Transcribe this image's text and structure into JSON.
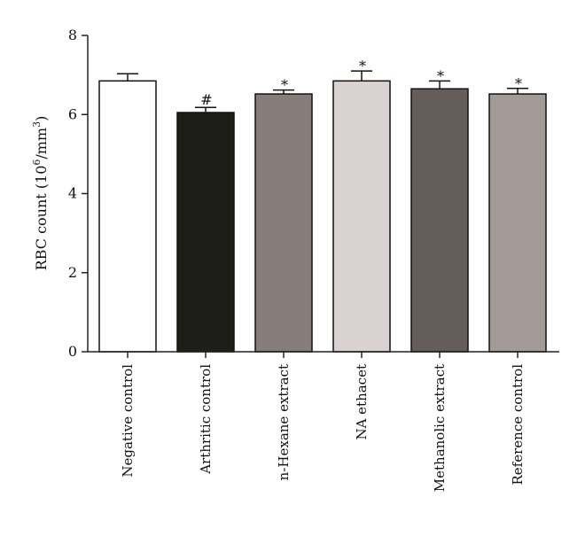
{
  "chart_data": {
    "type": "bar",
    "title": "",
    "xlabel": "",
    "ylabel": "RBC count (10",
    "ylabel_exp": "6",
    "ylabel_unit": "/mm",
    "ylabel_unit_exp": "3",
    "ylabel_close": ")",
    "ylim": [
      0,
      8
    ],
    "yticks": [
      "0",
      "2",
      "4",
      "6",
      "8"
    ],
    "grid": false,
    "categories": [
      "Negative control",
      "Arthritic control",
      "n-Hexane extract",
      "NA ethacet",
      "Methanolic extract",
      "Reference control"
    ],
    "values": [
      6.85,
      6.05,
      6.52,
      6.85,
      6.65,
      6.52
    ],
    "errors": [
      0.18,
      0.13,
      0.1,
      0.25,
      0.2,
      0.14
    ],
    "annotations": [
      "",
      "#",
      "*",
      "*",
      "*",
      "*"
    ],
    "colors": {
      "fills": [
        "#ffffff",
        "#1e1e19",
        "#867c7a",
        "#d9d2d0",
        "#655d59",
        "#a49b98"
      ],
      "outline": "#111111",
      "axis": "#222222"
    }
  }
}
